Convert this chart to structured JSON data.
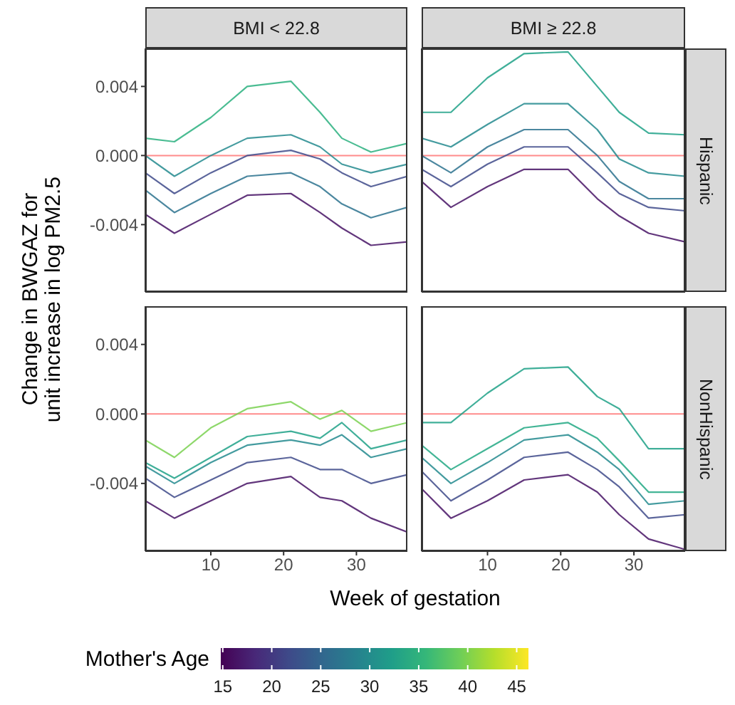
{
  "chart_data": [
    {
      "type": "line",
      "title": "BMI < 22.8",
      "ylabel": "Change in BWGAZ for\nunit increase in log PM2.5",
      "tick_labels": "y",
      "x": [
        1,
        5,
        10,
        15,
        21,
        25,
        28,
        32,
        37
      ],
      "xlim": [
        1,
        37
      ],
      "ylim": [
        -0.0079,
        0.0062
      ],
      "yticks": [
        {
          "value": -0.004,
          "label": "-0.004"
        },
        {
          "value": 0,
          "label": "0.000"
        },
        {
          "value": 0.004,
          "label": "0.004"
        }
      ],
      "ref_lines": [
        {
          "axis": "y",
          "value": 0,
          "color": "#ff8c8c"
        }
      ],
      "series": [
        {
          "color": "#471365",
          "values": [
            -0.0034,
            -0.0045,
            -0.0034,
            -0.0023,
            -0.0022,
            -0.0033,
            -0.0042,
            -0.0052,
            -0.005
          ]
        },
        {
          "color": "#2c728e",
          "values": [
            -0.002,
            -0.0033,
            -0.0022,
            -0.0012,
            -0.001,
            -0.0018,
            -0.0028,
            -0.0036,
            -0.003
          ]
        },
        {
          "color": "#3e4a89",
          "values": [
            -0.001,
            -0.0022,
            -0.001,
            0,
            0.0003,
            -0.0002,
            -0.001,
            -0.0018,
            -0.0012
          ]
        },
        {
          "color": "#23898e",
          "values": [
            0,
            -0.0012,
            0,
            0.001,
            0.0012,
            0.0005,
            -0.0005,
            -0.001,
            -0.0005
          ]
        },
        {
          "color": "#2ab07f",
          "values": [
            0.001,
            0.0008,
            0.0022,
            0.004,
            0.0043,
            0.0025,
            0.001,
            0.0002,
            0.0007
          ]
        }
      ]
    },
    {
      "type": "line",
      "title": "BMI ≥ 22.8",
      "annotations": [
        "Hispanic"
      ],
      "tick_labels": false,
      "x": [
        1,
        5,
        10,
        15,
        21,
        25,
        28,
        32,
        37
      ],
      "xlim": [
        1,
        37
      ],
      "ylim": [
        -0.0079,
        0.0062
      ],
      "ref_lines": [
        {
          "axis": "y",
          "value": 0,
          "color": "#ff8c8c"
        }
      ],
      "series": [
        {
          "color": "#471365",
          "values": [
            -0.0015,
            -0.003,
            -0.0018,
            -0.0008,
            -0.0008,
            -0.0025,
            -0.0035,
            -0.0045,
            -0.005
          ]
        },
        {
          "color": "#3e4a89",
          "values": [
            -0.0008,
            -0.0018,
            -0.0005,
            0.0005,
            0.0005,
            -0.001,
            -0.0022,
            -0.003,
            -0.0032
          ]
        },
        {
          "color": "#2c728e",
          "values": [
            0,
            -0.001,
            0.0005,
            0.0015,
            0.0015,
            0,
            -0.0015,
            -0.0025,
            -0.0025
          ]
        },
        {
          "color": "#23898e",
          "values": [
            0.001,
            0.0005,
            0.0018,
            0.003,
            0.003,
            0.0015,
            -0.0002,
            -0.001,
            -0.0012
          ]
        },
        {
          "color": "#1fa187",
          "values": [
            0.0025,
            0.0025,
            0.0045,
            0.0059,
            0.006,
            0.004,
            0.0025,
            0.0013,
            0.0012
          ]
        }
      ]
    },
    {
      "type": "line",
      "xlabel": "Week of gestation",
      "clabel": "Mother's Age",
      "clim": [
        14.8,
        46.2
      ],
      "cticks": [
        15,
        20,
        25,
        30,
        35,
        40,
        45
      ],
      "x": [
        1,
        5,
        10,
        15,
        21,
        25,
        28,
        32,
        37
      ],
      "xlim": [
        1,
        37
      ],
      "xticks": [
        10,
        20,
        30
      ],
      "ylim": [
        -0.0079,
        0.0062
      ],
      "yticks": [
        {
          "value": -0.004,
          "label": "-0.004"
        },
        {
          "value": 0,
          "label": "0.000"
        },
        {
          "value": 0.004,
          "label": "0.004"
        }
      ],
      "ref_lines": [
        {
          "axis": "y",
          "value": 0,
          "color": "#ff8c8c"
        }
      ],
      "series": [
        {
          "color": "#471365",
          "values": [
            -0.005,
            -0.006,
            -0.005,
            -0.004,
            -0.0036,
            -0.0048,
            -0.005,
            -0.006,
            -0.0068
          ]
        },
        {
          "color": "#3e4a89",
          "values": [
            -0.0037,
            -0.0048,
            -0.0038,
            -0.0028,
            -0.0025,
            -0.0032,
            -0.0032,
            -0.004,
            -0.0035
          ]
        },
        {
          "color": "#23898e",
          "values": [
            -0.003,
            -0.004,
            -0.0028,
            -0.0018,
            -0.0015,
            -0.0018,
            -0.0012,
            -0.0025,
            -0.002
          ]
        },
        {
          "color": "#1fa187",
          "values": [
            -0.0028,
            -0.0037,
            -0.0025,
            -0.0013,
            -0.001,
            -0.0014,
            -0.0005,
            -0.002,
            -0.0015
          ]
        },
        {
          "color": "#7ad151",
          "values": [
            -0.0015,
            -0.0025,
            -0.0008,
            0.0003,
            0.0007,
            -0.0003,
            0.0002,
            -0.001,
            -0.0005
          ]
        }
      ]
    },
    {
      "type": "line",
      "annotations": [
        "NonHispanic"
      ],
      "tick_labels": "x",
      "x": [
        1,
        5,
        10,
        15,
        21,
        25,
        28,
        32,
        37
      ],
      "xlim": [
        1,
        37
      ],
      "xticks": [
        10,
        20,
        30
      ],
      "ylim": [
        -0.0079,
        0.0062
      ],
      "ref_lines": [
        {
          "axis": "y",
          "value": 0,
          "color": "#ff8c8c"
        }
      ],
      "series": [
        {
          "color": "#471365",
          "values": [
            -0.0043,
            -0.006,
            -0.005,
            -0.0038,
            -0.0035,
            -0.0045,
            -0.0058,
            -0.0072,
            -0.0078
          ]
        },
        {
          "color": "#3e4a89",
          "values": [
            -0.0033,
            -0.005,
            -0.0038,
            -0.0025,
            -0.0022,
            -0.0032,
            -0.0042,
            -0.006,
            -0.0058
          ]
        },
        {
          "color": "#23898e",
          "values": [
            -0.0025,
            -0.004,
            -0.0028,
            -0.0015,
            -0.0012,
            -0.0022,
            -0.0032,
            -0.0052,
            -0.005
          ]
        },
        {
          "color": "#22a884",
          "values": [
            -0.0018,
            -0.0032,
            -0.002,
            -0.0008,
            -0.0005,
            -0.0014,
            -0.0027,
            -0.0045,
            -0.0045
          ]
        },
        {
          "color": "#1fa187",
          "values": [
            -0.0005,
            -0.0005,
            0.0012,
            0.0026,
            0.0027,
            0.001,
            0.0003,
            -0.002,
            -0.002
          ]
        }
      ]
    }
  ]
}
